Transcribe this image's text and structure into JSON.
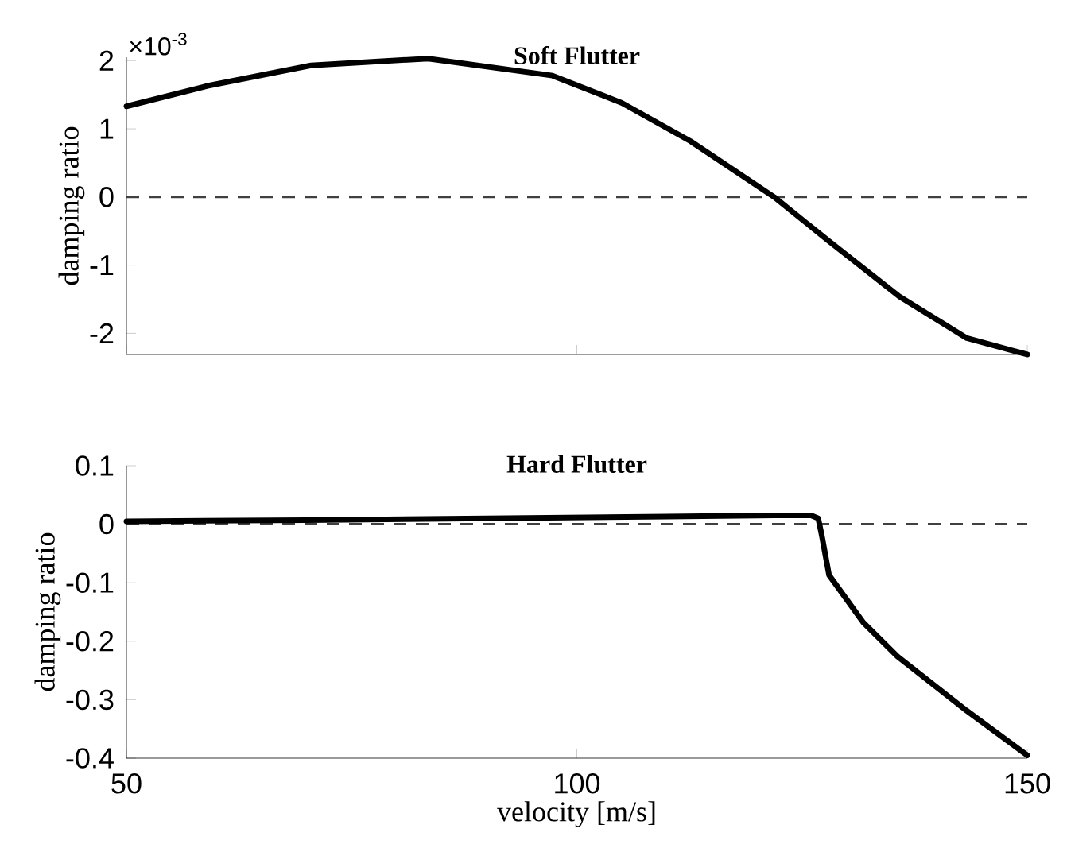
{
  "chart_data": [
    {
      "type": "line",
      "title": "Soft Flutter",
      "ylabel": "damping ratio",
      "annotations": [
        "×10$^{-3}$"
      ],
      "xlim": [
        50,
        150
      ],
      "xticks": [
        50,
        100,
        150
      ],
      "ylim": [
        -2.31,
        2.05
      ],
      "yticks": [
        -2,
        -1,
        0,
        1,
        2
      ],
      "tick_labels": "y",
      "ref_lines": [
        {
          "axis": "y",
          "value": 0,
          "color": "#404040",
          "line_style": "dashed"
        }
      ],
      "series": [
        {
          "color": "#000000",
          "x": [
            50,
            59,
            70.5,
            83.5,
            97.3,
            105,
            112.6,
            121.9,
            128,
            135.8,
            143.3,
            150
          ],
          "values": [
            1.33,
            1.63,
            1.93,
            2.03,
            1.78,
            1.38,
            0.82,
            0,
            -0.65,
            -1.46,
            -2.07,
            -2.31
          ]
        }
      ]
    },
    {
      "type": "line",
      "title": "Hard Flutter",
      "ylabel": "damping ratio",
      "xlabel": "velocity [m/s]",
      "xlim": [
        50,
        150
      ],
      "xticks": [
        50,
        100,
        150
      ],
      "ylim": [
        -0.4,
        0.1
      ],
      "yticks": [
        -0.4,
        -0.3,
        -0.2,
        -0.1,
        0,
        0.1
      ],
      "ref_lines": [
        {
          "axis": "y",
          "value": 0,
          "color": "#404040",
          "line_style": "dashed"
        }
      ],
      "series": [
        {
          "color": "#000000",
          "x": [
            50,
            70,
            90,
            110,
            122,
            126,
            126.8,
            127.2,
            128,
            131.8,
            135.6,
            143.3,
            150
          ],
          "values": [
            0.005,
            0.007,
            0.01,
            0.013,
            0.015,
            0.015,
            0.01,
            -0.02,
            -0.087,
            -0.168,
            -0.226,
            -0.319,
            -0.395
          ]
        }
      ]
    }
  ]
}
